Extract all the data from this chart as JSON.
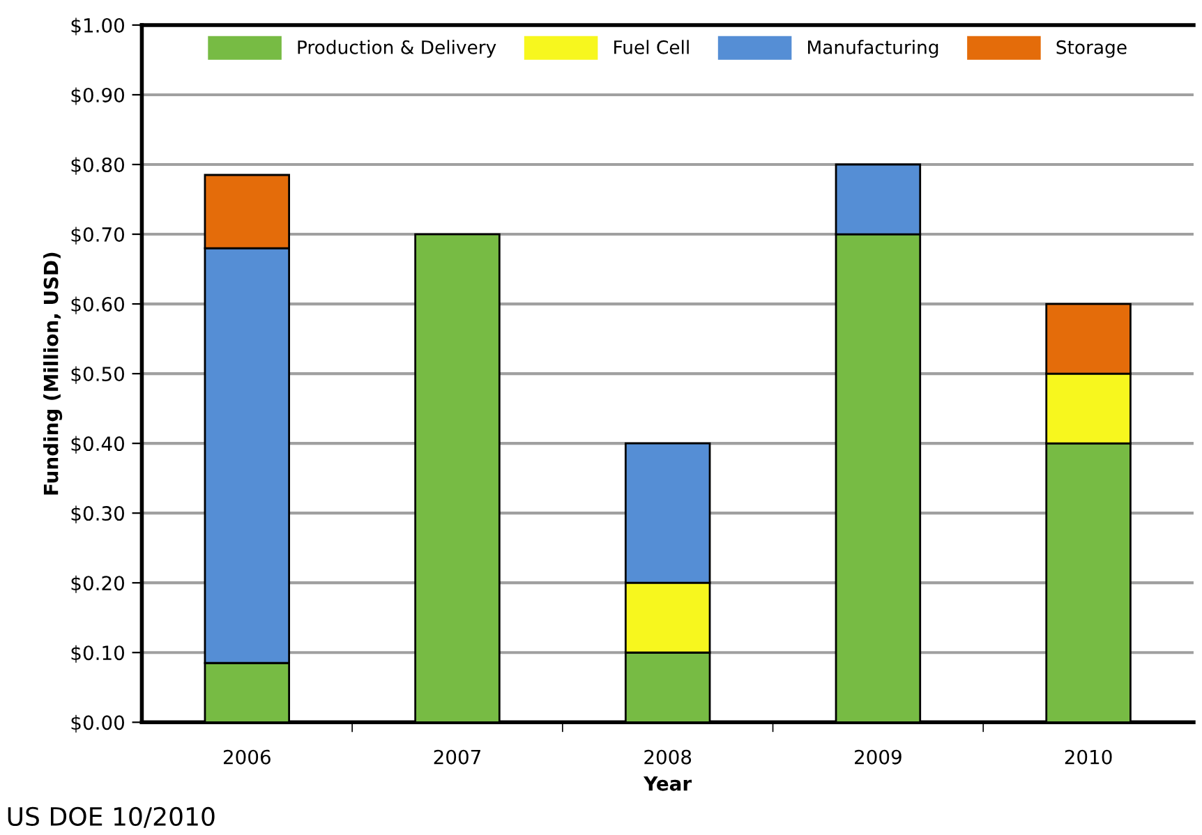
{
  "chart_data": {
    "type": "bar",
    "stacked": true,
    "xlabel": "Year",
    "ylabel": "Funding (Million, USD)",
    "categories": [
      "2006",
      "2007",
      "2008",
      "2009",
      "2010"
    ],
    "series": [
      {
        "name": "Production & Delivery",
        "color": "#77bb44",
        "values": [
          0.085,
          0.7,
          0.1,
          0.7,
          0.4
        ]
      },
      {
        "name": "Fuel Cell",
        "color": "#f7f71e",
        "values": [
          null,
          null,
          0.1,
          null,
          0.1
        ]
      },
      {
        "name": "Manufacturing",
        "color": "#558ed5",
        "values": [
          0.595,
          null,
          0.2,
          0.1,
          null
        ]
      },
      {
        "name": "Storage",
        "color": "#e46c0a",
        "values": [
          0.105,
          null,
          null,
          null,
          0.1
        ]
      }
    ],
    "ylim": [
      0,
      1.0
    ],
    "yticks": [
      {
        "value": 0,
        "label": "$0.00"
      },
      {
        "value": 0.1,
        "label": "$0.10"
      },
      {
        "value": 0.2,
        "label": "$0.20"
      },
      {
        "value": 0.3,
        "label": "$0.30"
      },
      {
        "value": 0.4,
        "label": "$0.40"
      },
      {
        "value": 0.5,
        "label": "$0.50"
      },
      {
        "value": 0.6,
        "label": "$0.60"
      },
      {
        "value": 0.7,
        "label": "$0.70"
      },
      {
        "value": 0.8,
        "label": "$0.80"
      },
      {
        "value": 0.9,
        "label": "$0.90"
      },
      {
        "value": 1.0,
        "label": "$1.00"
      }
    ],
    "grid": "y",
    "legend": "top",
    "annotations": [
      "US DOE 10/2010"
    ]
  }
}
